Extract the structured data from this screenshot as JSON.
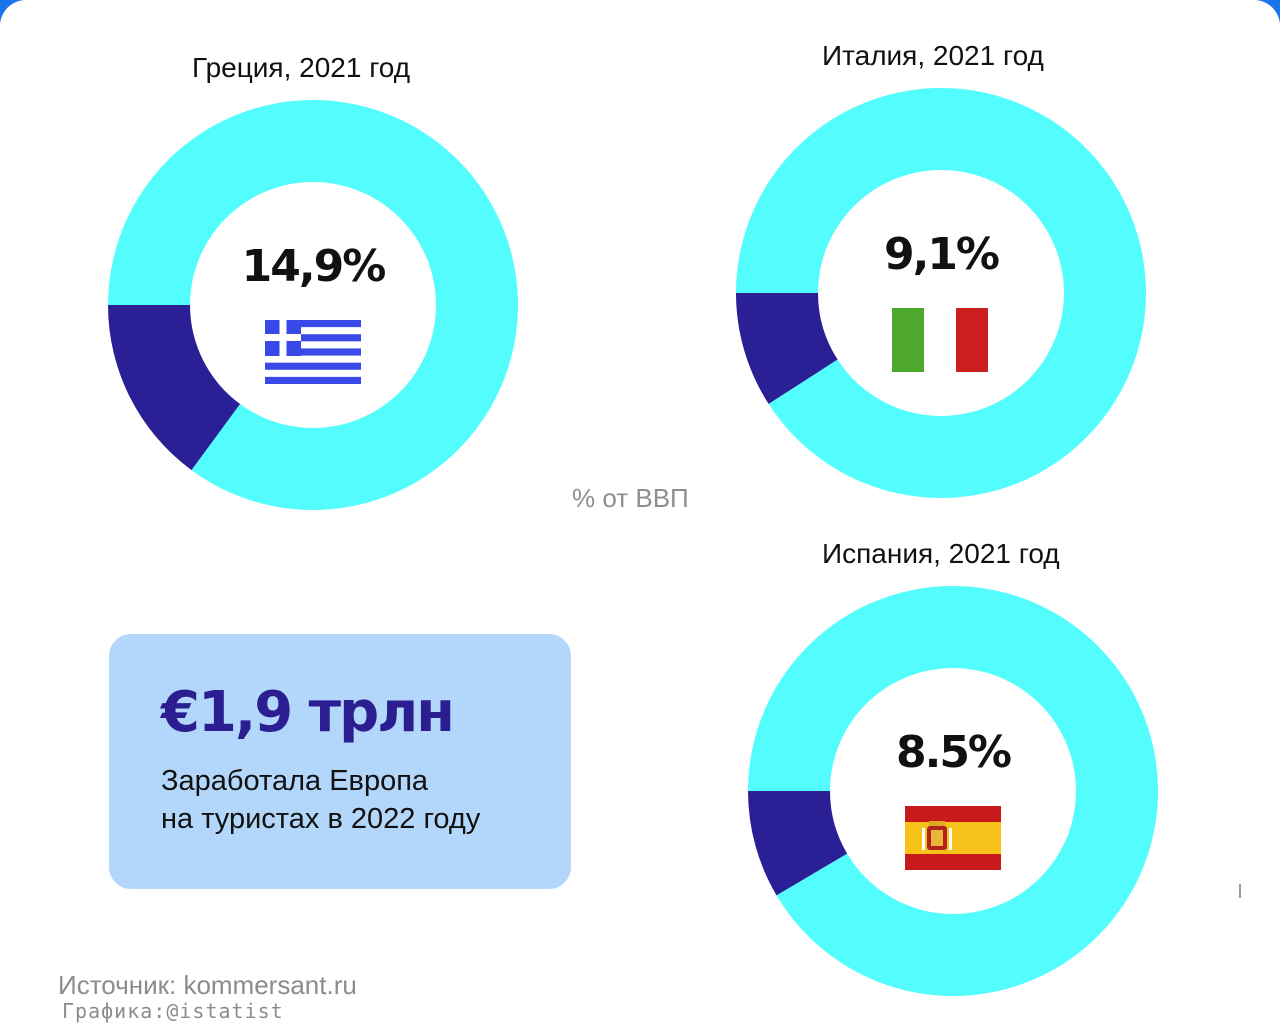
{
  "colors": {
    "rest": "#54fdfd",
    "share": "#2b1f96",
    "frame": "#1a73e8",
    "box": "#b3d7fb"
  },
  "chart_data": [
    {
      "type": "pie",
      "title": "Греция, 2021 год",
      "values": [
        14.9,
        85.1
      ],
      "value_label": "14,9%",
      "flag": "greece-flag"
    },
    {
      "type": "pie",
      "title": "Италия, 2021 год",
      "values": [
        9.1,
        90.9
      ],
      "value_label": "9,1%",
      "flag": "italy-flag"
    },
    {
      "type": "pie",
      "title": "Испания, 2021 год",
      "values": [
        8.5,
        91.5
      ],
      "value_label": "8.5%",
      "flag": "spain-flag"
    }
  ],
  "unit_label": "% от ВВП",
  "stat": {
    "value": "€1,9 трлн",
    "caption_line1": "Заработала Европа",
    "caption_line2": "на туристах в 2022 году"
  },
  "footer": {
    "source": "Источник: kommersant.ru",
    "credit": "Графика:@istatist"
  }
}
